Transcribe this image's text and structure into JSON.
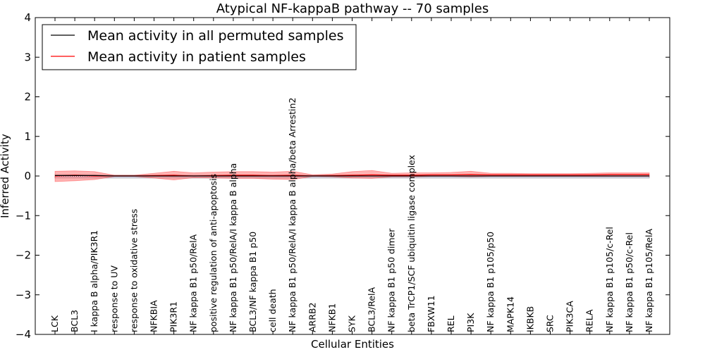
{
  "chart_data": {
    "type": "line",
    "title": "Atypical NF-kappaB pathway -- 70 samples",
    "xlabel": "Cellular Entities",
    "ylabel": "Inferred Activity",
    "ylim": [
      -4,
      4
    ],
    "yticks": [
      -4,
      -3,
      -2,
      -1,
      0,
      1,
      2,
      3,
      4
    ],
    "ytick_labels": [
      "−4",
      "−3",
      "−2",
      "−1",
      "0",
      "1",
      "2",
      "3",
      "4"
    ],
    "grid": false,
    "legend_position": "top-left",
    "categories": [
      "LCK",
      "BCL3",
      "I kappa B alpha/PIK3R1",
      "response to UV",
      "response to oxidative stress",
      "NFKBIA",
      "PIK3R1",
      "NF kappa B1 p50/RelA",
      "positive regulation of anti-apoptosis",
      "NF kappa B1 p50/RelA/I kappa B alpha",
      "BCL3/NF kappa B1 p50",
      "cell death",
      "NF kappa B1 p50/RelA/I kappa B alpha/beta Arrestin2",
      "ARRB2",
      "NFKB1",
      "SYK",
      "BCL3/RelA",
      "NF kappa B1 p50 dimer",
      "beta TrCP1/SCF ubiquitin ligase complex",
      "FBXW11",
      "REL",
      "PI3K",
      "NF kappa B1 p105/p50",
      "MAPK14",
      "IKBKB",
      "SRC",
      "PIK3CA",
      "RELA",
      "NF kappa B1 p105/c-Rel",
      "NF kappa B1 p50/c-Rel",
      "NF kappa B1 p105/RelA"
    ],
    "series": [
      {
        "name": "Mean activity in all permuted samples",
        "color": "#000000",
        "values": [
          0.01,
          0.01,
          0.01,
          0.0,
          0.0,
          0.0,
          0.0,
          0.0,
          0.0,
          0.0,
          0.0,
          0.0,
          0.0,
          0.0,
          0.0,
          0.0,
          0.0,
          0.0,
          0.0,
          0.0,
          0.0,
          0.0,
          0.0,
          0.0,
          0.0,
          0.0,
          0.0,
          0.0,
          0.0,
          0.0,
          0.0
        ],
        "band_upper": [
          0.03,
          0.03,
          0.03,
          0.02,
          0.02,
          0.02,
          0.02,
          0.02,
          0.02,
          0.02,
          0.02,
          0.02,
          0.02,
          0.02,
          0.02,
          0.02,
          0.02,
          0.02,
          0.02,
          0.02,
          0.02,
          0.02,
          0.02,
          0.02,
          0.02,
          0.02,
          0.02,
          0.02,
          0.02,
          0.02,
          0.02
        ],
        "band_lower": [
          -0.05,
          -0.05,
          -0.05,
          -0.05,
          -0.05,
          -0.05,
          -0.05,
          -0.05,
          -0.05,
          -0.05,
          -0.05,
          -0.05,
          -0.05,
          -0.05,
          -0.05,
          -0.05,
          -0.05,
          -0.05,
          -0.05,
          -0.05,
          -0.05,
          -0.05,
          -0.05,
          -0.05,
          -0.05,
          -0.05,
          -0.05,
          -0.05,
          -0.05,
          -0.05,
          -0.05
        ],
        "band_color": "#ccccee"
      },
      {
        "name": "Mean activity in patient samples",
        "color": "#ff0000",
        "values": [
          0.0,
          0.02,
          0.0,
          0.0,
          0.0,
          0.01,
          0.02,
          0.0,
          0.01,
          0.02,
          0.02,
          0.01,
          0.02,
          0.0,
          0.01,
          0.02,
          0.03,
          0.02,
          0.02,
          0.03,
          0.03,
          0.04,
          0.03,
          0.03,
          0.03,
          0.03,
          0.03,
          0.03,
          0.04,
          0.04,
          0.04
        ],
        "band_upper": [
          0.12,
          0.13,
          0.11,
          0.02,
          0.02,
          0.07,
          0.12,
          0.08,
          0.1,
          0.11,
          0.11,
          0.1,
          0.12,
          0.03,
          0.05,
          0.11,
          0.14,
          0.07,
          0.08,
          0.08,
          0.09,
          0.12,
          0.07,
          0.07,
          0.06,
          0.06,
          0.06,
          0.07,
          0.08,
          0.08,
          0.08
        ],
        "band_lower": [
          -0.14,
          -0.12,
          -0.09,
          -0.01,
          -0.01,
          -0.05,
          -0.1,
          -0.04,
          -0.05,
          -0.06,
          -0.06,
          -0.08,
          -0.09,
          -0.01,
          -0.02,
          -0.05,
          -0.06,
          -0.02,
          -0.02,
          -0.01,
          -0.01,
          -0.02,
          -0.01,
          -0.01,
          -0.01,
          -0.01,
          -0.01,
          -0.01,
          -0.01,
          -0.01,
          -0.01
        ],
        "band_color": "#ff6666"
      }
    ]
  }
}
